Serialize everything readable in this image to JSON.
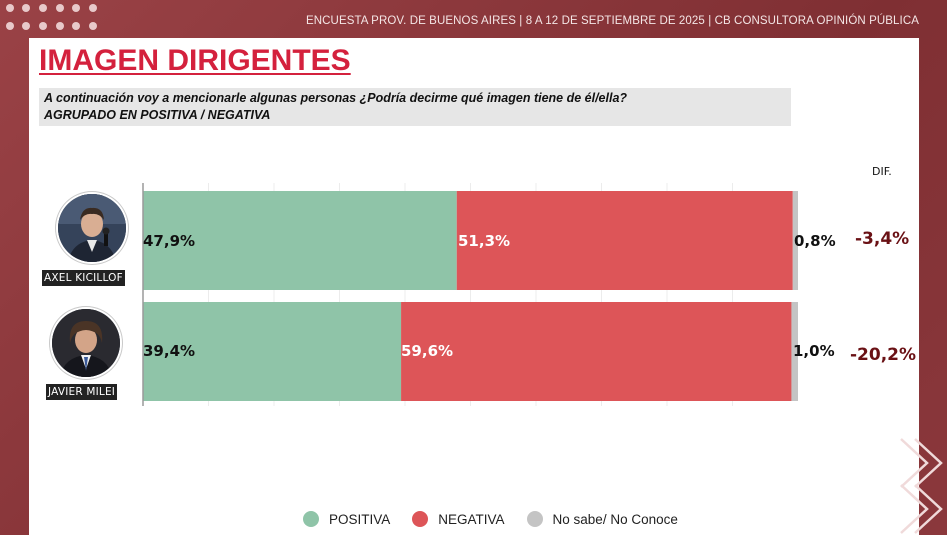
{
  "header": {
    "text": "ENCUESTA PROV. DE BUENOS AIRES | 8 A 12 DE SEPTIEMBRE DE 2025 | CB CONSULTORA OPINIÓN PÚBLICA"
  },
  "title": "IMAGEN DIRIGENTES",
  "question": {
    "line1": "A continuación voy a mencionarle algunas personas  ¿Podría decirme qué imagen tiene de él/ella?",
    "line2": "AGRUPADO EN POSITIVA / NEGATIVA"
  },
  "dif_header": "DIF.",
  "colors": {
    "positiva": "#8fc4a8",
    "negativa": "#dd5558",
    "nsnc": "#c4c4c4",
    "title": "#d4213d",
    "dif": "#6a1115",
    "background": "#8e3a3e"
  },
  "chart_data": {
    "type": "bar",
    "orientation": "horizontal",
    "stacked": true,
    "categories": [
      "AXEL KICILLOF",
      "JAVIER MILEI"
    ],
    "series": [
      {
        "name": "POSITIVA",
        "values": [
          47.9,
          39.4
        ],
        "labels": [
          "47,9%",
          "39,4%"
        ]
      },
      {
        "name": "NEGATIVA",
        "values": [
          51.3,
          59.6
        ],
        "labels": [
          "51,3%",
          "59,6%"
        ]
      },
      {
        "name": "No sabe/ No Conoce",
        "values": [
          0.8,
          1.0
        ],
        "labels": [
          "0,8%",
          "1,0%"
        ]
      }
    ],
    "dif": [
      "-3,4%",
      "-20,2%"
    ],
    "xlim": [
      0,
      100
    ],
    "grid": true,
    "legend_position": "bottom"
  },
  "rows": [
    {
      "name": "AXEL KICILLOF",
      "photo_icon": "person-photo-icon",
      "dif": "-3,4%"
    },
    {
      "name": "JAVIER MILEI",
      "photo_icon": "person-photo-icon",
      "dif": "-20,2%"
    }
  ],
  "legend": [
    {
      "label": "POSITIVA"
    },
    {
      "label": "NEGATIVA"
    },
    {
      "label": "No sabe/ No Conoce"
    }
  ]
}
